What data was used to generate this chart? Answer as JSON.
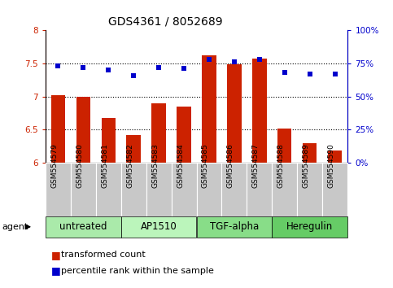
{
  "title": "GDS4361 / 8052689",
  "samples": [
    "GSM554579",
    "GSM554580",
    "GSM554581",
    "GSM554582",
    "GSM554583",
    "GSM554584",
    "GSM554585",
    "GSM554586",
    "GSM554587",
    "GSM554588",
    "GSM554589",
    "GSM554590"
  ],
  "bar_values": [
    7.02,
    6.99,
    6.67,
    6.42,
    6.9,
    6.85,
    7.62,
    7.49,
    7.57,
    6.52,
    6.3,
    6.18
  ],
  "scatter_values": [
    73,
    72,
    70,
    66,
    72,
    71,
    78,
    76,
    78,
    68,
    67,
    67
  ],
  "bar_color": "#cc2200",
  "scatter_color": "#0000cc",
  "ylim_left": [
    6.0,
    8.0
  ],
  "ylim_right": [
    0,
    100
  ],
  "yticks_left": [
    6.0,
    6.5,
    7.0,
    7.5,
    8.0
  ],
  "ytick_labels_left": [
    "6",
    "6.5",
    "7",
    "7.5",
    "8"
  ],
  "yticks_right": [
    0,
    25,
    50,
    75,
    100
  ],
  "ytick_labels_right": [
    "0%",
    "25%",
    "50%",
    "75%",
    "100%"
  ],
  "hlines": [
    6.5,
    7.0,
    7.5
  ],
  "groups": [
    {
      "label": "untreated",
      "start": 0,
      "end": 2,
      "color": "#aaeaaa"
    },
    {
      "label": "AP1510",
      "start": 3,
      "end": 5,
      "color": "#bbf5bb"
    },
    {
      "label": "TGF-alpha",
      "start": 6,
      "end": 8,
      "color": "#88dd88"
    },
    {
      "label": "Heregulin",
      "start": 9,
      "end": 11,
      "color": "#66cc66"
    }
  ],
  "legend_bar_label": "transformed count",
  "legend_scatter_label": "percentile rank within the sample",
  "agent_label": "agent",
  "background_color": "#ffffff",
  "sample_cell_color": "#c8c8c8",
  "title_fontsize": 10,
  "axis_fontsize": 7.5,
  "sample_fontsize": 6.5,
  "group_fontsize": 8.5,
  "legend_fontsize": 8
}
